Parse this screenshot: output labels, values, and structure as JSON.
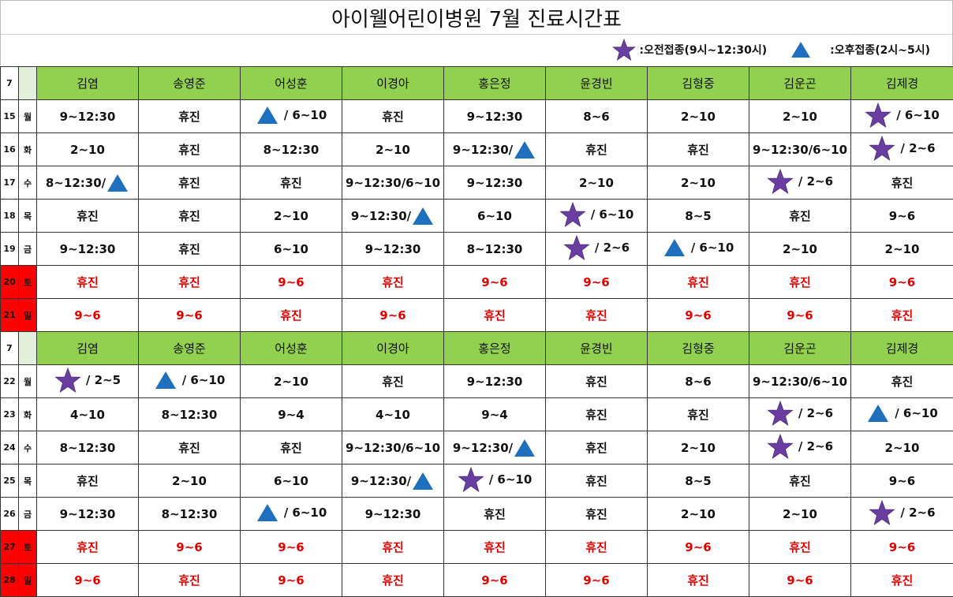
{
  "title": "아이웰어린이병원 7월 진료시간표",
  "legend": {
    "star_label": ":오전접종(9시~12:30시)",
    "triangle_label": ":오후접종(2시~5시)"
  },
  "colors": {
    "header_green": "#92d050",
    "weekend_red": "#ff0000",
    "red_text": "#e00000",
    "star": "#6a3ea1",
    "triangle": "#1f6fbf"
  },
  "month": "7",
  "doctors": [
    "김염",
    "송영준",
    "어성훈",
    "이경아",
    "홍은정",
    "윤경빈",
    "김형중",
    "김운곤",
    "김제경"
  ],
  "week1": [
    {
      "day": "15",
      "dow": "월",
      "weekend": false,
      "cells": [
        {
          "text": "9~12:30"
        },
        {
          "text": "휴진"
        },
        {
          "pre": "triangle",
          "text": " / 6~10"
        },
        {
          "text": "휴진"
        },
        {
          "text": "9~12:30"
        },
        {
          "text": "8~6"
        },
        {
          "text": "2~10"
        },
        {
          "text": "2~10"
        },
        {
          "pre": "star",
          "text": "/ 6~10"
        }
      ]
    },
    {
      "day": "16",
      "dow": "화",
      "weekend": false,
      "cells": [
        {
          "text": "2~10"
        },
        {
          "text": "휴진"
        },
        {
          "text": "8~12:30"
        },
        {
          "text": "2~10"
        },
        {
          "text": "9~12:30/",
          "post": "triangle"
        },
        {
          "text": "휴진"
        },
        {
          "text": "휴진"
        },
        {
          "text": "9~12:30/6~10"
        },
        {
          "pre": "star",
          "text": "/ 2~6"
        }
      ]
    },
    {
      "day": "17",
      "dow": "수",
      "weekend": false,
      "cells": [
        {
          "text": "8~12:30/",
          "post": "triangle"
        },
        {
          "text": "휴진"
        },
        {
          "text": "휴진"
        },
        {
          "text": "9~12:30/6~10"
        },
        {
          "text": "9~12:30"
        },
        {
          "text": "2~10"
        },
        {
          "text": "2~10"
        },
        {
          "pre": "star",
          "text": "/ 2~6"
        },
        {
          "text": "휴진"
        }
      ]
    },
    {
      "day": "18",
      "dow": "목",
      "weekend": false,
      "cells": [
        {
          "text": "휴진"
        },
        {
          "text": "휴진"
        },
        {
          "text": "2~10"
        },
        {
          "text": "9~12:30/",
          "post": "triangle"
        },
        {
          "text": "6~10"
        },
        {
          "pre": "star",
          "text": "/ 6~10"
        },
        {
          "text": "8~5"
        },
        {
          "text": "휴진"
        },
        {
          "text": "9~6"
        }
      ]
    },
    {
      "day": "19",
      "dow": "금",
      "weekend": false,
      "cells": [
        {
          "text": "9~12:30"
        },
        {
          "text": "휴진"
        },
        {
          "text": "6~10"
        },
        {
          "text": "9~12:30"
        },
        {
          "text": "8~12:30"
        },
        {
          "pre": "star",
          "text": "/ 2~6"
        },
        {
          "pre": "triangle",
          "text": "/ 6~10"
        },
        {
          "text": "2~10"
        },
        {
          "text": "2~10"
        }
      ]
    },
    {
      "day": "20",
      "dow": "토",
      "weekend": true,
      "cells": [
        {
          "text": "휴진"
        },
        {
          "text": "휴진"
        },
        {
          "text": "9~6"
        },
        {
          "text": "휴진"
        },
        {
          "text": "9~6"
        },
        {
          "text": "9~6"
        },
        {
          "text": "휴진"
        },
        {
          "text": "휴진"
        },
        {
          "text": "9~6"
        }
      ]
    },
    {
      "day": "21",
      "dow": "일",
      "weekend": true,
      "cells": [
        {
          "text": "9~6"
        },
        {
          "text": "9~6"
        },
        {
          "text": "휴진"
        },
        {
          "text": "9~6"
        },
        {
          "text": "휴진"
        },
        {
          "text": "휴진"
        },
        {
          "text": "9~6"
        },
        {
          "text": "9~6"
        },
        {
          "text": "휴진"
        }
      ]
    }
  ],
  "week2": [
    {
      "day": "22",
      "dow": "월",
      "weekend": false,
      "cells": [
        {
          "pre": "star",
          "text": "/ 2~5"
        },
        {
          "pre": "triangle",
          "text": " / 6~10"
        },
        {
          "text": "2~10"
        },
        {
          "text": "휴진"
        },
        {
          "text": "9~12:30"
        },
        {
          "text": "휴진"
        },
        {
          "text": "8~6"
        },
        {
          "text": "9~12:30/6~10"
        },
        {
          "text": "휴진"
        }
      ]
    },
    {
      "day": "23",
      "dow": "화",
      "weekend": false,
      "cells": [
        {
          "text": "4~10"
        },
        {
          "text": "8~12:30"
        },
        {
          "text": "9~4"
        },
        {
          "text": "4~10"
        },
        {
          "text": "9~4"
        },
        {
          "text": "휴진"
        },
        {
          "text": "휴진"
        },
        {
          "pre": "star",
          "text": "/ 2~6"
        },
        {
          "pre": "triangle",
          "text": " / 6~10"
        }
      ]
    },
    {
      "day": "24",
      "dow": "수",
      "weekend": false,
      "cells": [
        {
          "text": "8~12:30"
        },
        {
          "text": "휴진"
        },
        {
          "text": "휴진"
        },
        {
          "text": "9~12:30/6~10"
        },
        {
          "text": "9~12:30/",
          "post": "triangle"
        },
        {
          "text": "휴진"
        },
        {
          "text": "2~10"
        },
        {
          "pre": "star",
          "text": "/ 2~6"
        },
        {
          "text": "2~10"
        }
      ]
    },
    {
      "day": "25",
      "dow": "목",
      "weekend": false,
      "cells": [
        {
          "text": "휴진"
        },
        {
          "text": "2~10"
        },
        {
          "text": "6~10"
        },
        {
          "text": "9~12:30/",
          "post": "triangle"
        },
        {
          "pre": "star",
          "text": "/ 6~10"
        },
        {
          "text": "휴진"
        },
        {
          "text": "8~5"
        },
        {
          "text": "휴진"
        },
        {
          "text": "9~6"
        }
      ]
    },
    {
      "day": "26",
      "dow": "금",
      "weekend": false,
      "cells": [
        {
          "text": "9~12:30"
        },
        {
          "text": "8~12:30"
        },
        {
          "pre": "triangle",
          "text": " / 6~10"
        },
        {
          "text": "9~12:30"
        },
        {
          "text": "휴진"
        },
        {
          "text": "휴진"
        },
        {
          "text": "2~10"
        },
        {
          "text": "2~10"
        },
        {
          "pre": "star",
          "text": "/ 2~6"
        }
      ]
    },
    {
      "day": "27",
      "dow": "토",
      "weekend": true,
      "cells": [
        {
          "text": "휴진"
        },
        {
          "text": "9~6"
        },
        {
          "text": "9~6"
        },
        {
          "text": "휴진"
        },
        {
          "text": "휴진"
        },
        {
          "text": "휴진"
        },
        {
          "text": "9~6"
        },
        {
          "text": "휴진"
        },
        {
          "text": "9~6"
        }
      ]
    },
    {
      "day": "28",
      "dow": "일",
      "weekend": true,
      "cells": [
        {
          "text": "9~6"
        },
        {
          "text": "휴진"
        },
        {
          "text": "9~6"
        },
        {
          "text": "휴진"
        },
        {
          "text": "9~6"
        },
        {
          "text": "9~6"
        },
        {
          "text": "휴진"
        },
        {
          "text": "9~6"
        },
        {
          "text": "휴진"
        }
      ]
    }
  ]
}
